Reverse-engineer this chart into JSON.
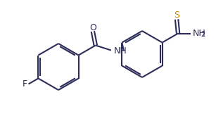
{
  "title": "",
  "background_color": "#ffffff",
  "line_color": "#2d2d5a",
  "atom_colors": {
    "F": "#2d2d5a",
    "O": "#2d2d5a",
    "N": "#2d2d5a",
    "S": "#cc8800",
    "C": "#2d2d5a"
  },
  "bond_width": 1.5,
  "font_size": 9,
  "figsize": [
    3.07,
    1.92
  ],
  "dpi": 100
}
